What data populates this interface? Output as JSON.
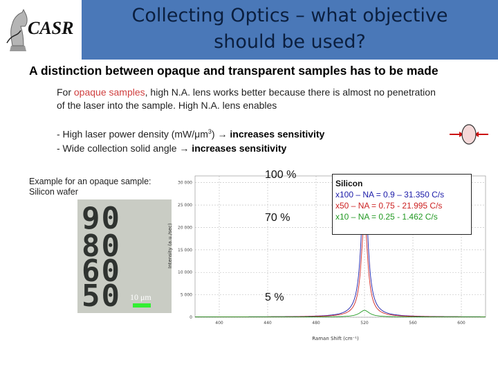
{
  "logo": {
    "text": "CASR"
  },
  "title": {
    "line1": "Collecting Optics – what objective",
    "line2": "should be used?"
  },
  "heading": "A distinction between opaque and transparent samples has to be made",
  "paragraph": {
    "pre": "For ",
    "highlight": "opaque samples",
    "post": ", high N.A. lens works better because there is almost no penetration of the laser into the sample. High N.A. lens enables"
  },
  "bullets": [
    {
      "pre": "- High laser power density (mW/μm",
      "sup": "3",
      "post": ") ",
      "arrow": "→",
      "bold": " increases sensitivity"
    },
    {
      "pre": "- Wide collection solid angle ",
      "arrow": "→",
      "bold": " increases sensitivity"
    }
  ],
  "example": {
    "line1": "Example for an opaque sample:",
    "line2": "Silicon wafer"
  },
  "photo": {
    "numbers": [
      "90",
      "80",
      "60",
      "50"
    ],
    "scale": "10 μm"
  },
  "annotations": {
    "a100": "100 %",
    "a70": "70 %",
    "a5": "5 %"
  },
  "legend": {
    "title": "Silicon",
    "entries": [
      {
        "text": "x100 – NA = 0.9 – 31.350 C/s",
        "color": "#1a1aa8"
      },
      {
        "text": "x50 – NA = 0.75 - 21.995 C/s",
        "color": "#cc2222"
      },
      {
        "text": "x10 – NA = 0.25 - 1.462 C/s",
        "color": "#229922"
      }
    ]
  },
  "chart_data": {
    "type": "line",
    "xlabel": "Raman Shift (cm⁻¹)",
    "ylabel": "Intensity (a.u./sec)",
    "xlim": [
      380,
      620
    ],
    "ylim": [
      0,
      31500
    ],
    "x_ticks": [
      400,
      440,
      480,
      520,
      560,
      600
    ],
    "y_ticks": [
      0,
      5000,
      10000,
      15000,
      20000,
      25000,
      30000
    ],
    "series": [
      {
        "color": "#1a1aa8",
        "peak_x": 520,
        "peak_y": 31350,
        "width": 3.2
      },
      {
        "color": "#cc2222",
        "peak_x": 520,
        "peak_y": 21995,
        "width": 3.2
      },
      {
        "color": "#229922",
        "peak_x": 520,
        "peak_y": 1462,
        "width": 5
      }
    ]
  }
}
